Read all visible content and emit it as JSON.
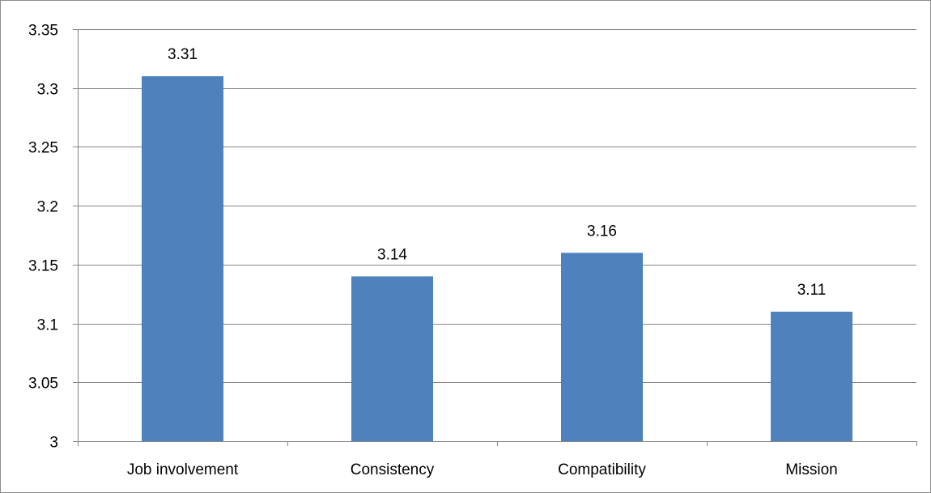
{
  "chart_data": {
    "type": "bar",
    "categories": [
      "Job involvement",
      "Consistency",
      "Compatibility",
      "Mission"
    ],
    "values": [
      3.31,
      3.14,
      3.16,
      3.11
    ],
    "data_labels": [
      "3.31",
      "3.14",
      "3.16",
      "3.11"
    ],
    "title": "",
    "xlabel": "",
    "ylabel": "",
    "ylim": [
      3,
      3.35
    ],
    "yticks": [
      3,
      3.05,
      3.1,
      3.15,
      3.2,
      3.25,
      3.3,
      3.35
    ],
    "ytick_labels": [
      "3",
      "3.05",
      "3.1",
      "3.15",
      "3.2",
      "3.25",
      "3.3",
      "3.35"
    ],
    "grid": "horizontal",
    "legend": "none",
    "colors": {
      "bar": "#4f81bd",
      "grid": "#868686",
      "axis": "#868686",
      "text": "#000000"
    }
  }
}
